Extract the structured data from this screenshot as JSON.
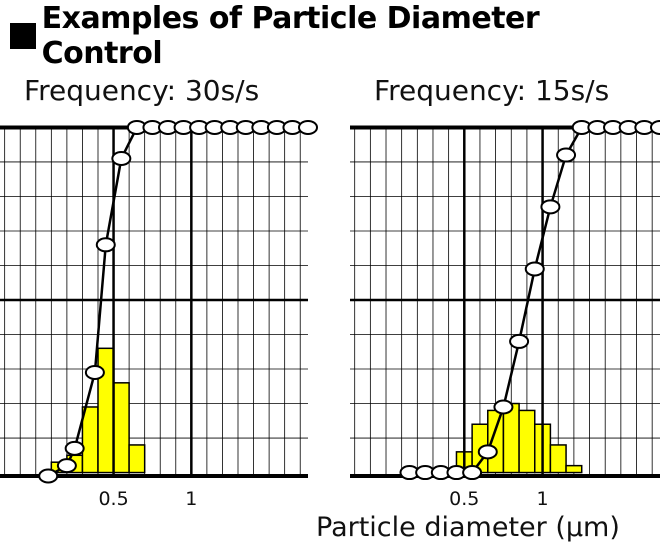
{
  "title": "Examples of Particle Diameter Control",
  "xlabel": "Particle diameter (μm)",
  "colors": {
    "bar": "#ffff00",
    "line": "#000000",
    "marker_fill": "#ffffff"
  },
  "chart_data": [
    {
      "type": "bar",
      "title": "Frequency: 30s/s",
      "x_ticks": [
        {
          "value": 0.5,
          "label": "0.5"
        },
        {
          "value": 1,
          "label": "1"
        }
      ],
      "bars": [
        {
          "from": 0.1,
          "to": 0.2,
          "value": 3
        },
        {
          "from": 0.2,
          "to": 0.3,
          "value": 5
        },
        {
          "from": 0.3,
          "to": 0.4,
          "value": 19
        },
        {
          "from": 0.4,
          "to": 0.5,
          "value": 36
        },
        {
          "from": 0.5,
          "to": 0.6,
          "value": 26
        },
        {
          "from": 0.6,
          "to": 0.7,
          "value": 8
        }
      ],
      "cumulative_line": {
        "x": [
          0.08,
          0.2,
          0.25,
          0.38,
          0.45,
          0.55,
          0.65,
          0.75,
          0.85,
          0.95,
          1.05,
          1.15,
          1.25,
          1.35,
          1.45,
          1.55,
          1.65,
          1.75
        ],
        "y": [
          -1,
          2,
          7,
          29,
          66,
          91,
          100,
          100,
          100,
          100,
          100,
          100,
          100,
          100,
          100,
          100,
          100,
          100
        ]
      },
      "xlim": [
        -0.23,
        1.75
      ],
      "ylim": [
        -1,
        101
      ],
      "grid": true
    },
    {
      "type": "bar",
      "title": "Frequency: 15s/s",
      "x_ticks": [
        {
          "value": 0.5,
          "label": "0.5"
        },
        {
          "value": 1,
          "label": "1"
        }
      ],
      "bars": [
        {
          "from": 0.45,
          "to": 0.55,
          "value": 6
        },
        {
          "from": 0.55,
          "to": 0.65,
          "value": 14
        },
        {
          "from": 0.65,
          "to": 0.75,
          "value": 18
        },
        {
          "from": 0.75,
          "to": 0.85,
          "value": 20
        },
        {
          "from": 0.85,
          "to": 0.95,
          "value": 18
        },
        {
          "from": 0.95,
          "to": 1.05,
          "value": 14
        },
        {
          "from": 1.05,
          "to": 1.15,
          "value": 8
        },
        {
          "from": 1.15,
          "to": 1.25,
          "value": 2
        }
      ],
      "cumulative_line": {
        "x": [
          0.15,
          0.25,
          0.35,
          0.45,
          0.55,
          0.65,
          0.75,
          0.85,
          0.95,
          1.05,
          1.15,
          1.25,
          1.35,
          1.45,
          1.55,
          1.65,
          1.75
        ],
        "y": [
          0,
          0,
          0,
          0,
          0,
          6,
          19,
          38,
          59,
          77,
          92,
          100,
          100,
          100,
          100,
          100,
          100
        ]
      },
      "xlim": [
        -0.23,
        1.75
      ],
      "ylim": [
        -1,
        101
      ],
      "grid": true
    }
  ]
}
